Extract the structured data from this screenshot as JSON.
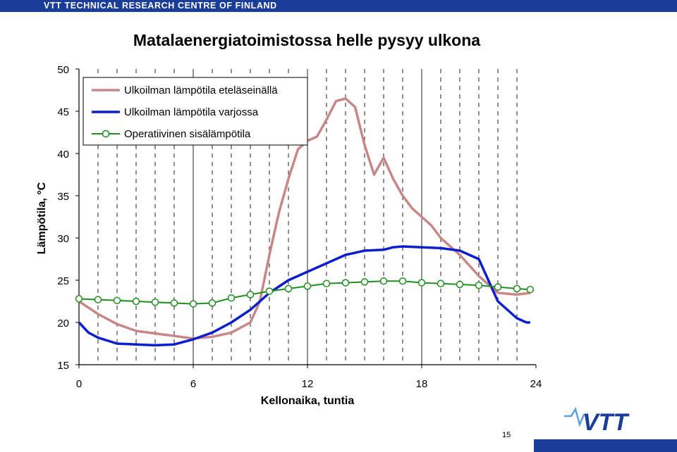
{
  "header": {
    "banner": "VTT TECHNICAL RESEARCH CENTRE OF FINLAND"
  },
  "footer": {
    "page_number": "15",
    "logo": "VTT"
  },
  "colors": {
    "banner": "#1a3d99",
    "south_wall": "#c78787",
    "shade": "#0d1fcc",
    "operative": "#1f8f1f"
  },
  "chart_data": {
    "type": "line",
    "title": "Matalaenergiatoimistossa helle pysyy ulkona",
    "xlabel": "Kellonaika, tuntia",
    "ylabel": "Lämpötila, °C",
    "xlim": [
      0,
      24
    ],
    "ylim": [
      15,
      50
    ],
    "x_ticks": [
      "0",
      "6",
      "12",
      "18",
      "24"
    ],
    "y_ticks": [
      "15",
      "20",
      "25",
      "30",
      "35",
      "40",
      "45",
      "50"
    ],
    "grid": "vertical dashed lines every hour",
    "legend_position": "top-left",
    "series": [
      {
        "name": "Ulkoilman lämpötila eteläseinällä",
        "color": "#c78787",
        "marker": "none",
        "x": [
          0,
          1,
          2,
          3,
          4,
          5,
          6,
          7,
          8,
          9,
          9.5,
          10,
          10.5,
          11,
          11.5,
          12,
          12.5,
          13,
          13.5,
          14,
          14.5,
          15,
          15.5,
          16,
          16.5,
          17,
          17.5,
          18,
          18.5,
          19,
          20,
          21,
          22,
          23,
          23.7
        ],
        "y": [
          22.5,
          21.0,
          19.8,
          19.0,
          18.7,
          18.4,
          18.1,
          18.3,
          18.8,
          20.0,
          22.5,
          28.0,
          33.0,
          37.0,
          40.5,
          41.5,
          42.0,
          44.0,
          46.2,
          46.5,
          45.5,
          41.0,
          37.5,
          39.5,
          37.0,
          35.0,
          33.5,
          32.5,
          31.5,
          30.0,
          28.0,
          25.5,
          23.5,
          23.3,
          23.5
        ]
      },
      {
        "name": "Ulkoilman lämpötila varjossa",
        "color": "#0d1fcc",
        "marker": "none",
        "x": [
          0,
          0.5,
          1,
          2,
          3,
          4,
          5,
          6,
          7,
          8,
          9,
          10,
          11,
          12,
          13,
          14,
          15,
          16,
          16.5,
          17,
          18,
          19,
          20,
          21,
          21.5,
          22,
          22.5,
          23,
          23.5,
          23.7
        ],
        "y": [
          20.0,
          18.8,
          18.2,
          17.5,
          17.4,
          17.3,
          17.4,
          18.0,
          18.8,
          20.0,
          21.5,
          23.5,
          25.0,
          26.0,
          27.0,
          28.0,
          28.5,
          28.6,
          28.9,
          29.0,
          28.9,
          28.8,
          28.5,
          27.5,
          25.0,
          22.5,
          21.5,
          20.5,
          20.0,
          20.0
        ]
      },
      {
        "name": "Operatiivinen sisälämpötila",
        "color": "#1f8f1f",
        "marker": "circle",
        "x": [
          0,
          1,
          2,
          3,
          4,
          5,
          6,
          7,
          8,
          9,
          10,
          11,
          12,
          13,
          14,
          15,
          16,
          17,
          18,
          19,
          20,
          21,
          22,
          23,
          23.7
        ],
        "y": [
          22.8,
          22.7,
          22.6,
          22.5,
          22.4,
          22.3,
          22.2,
          22.3,
          22.9,
          23.3,
          23.7,
          24.0,
          24.3,
          24.6,
          24.7,
          24.8,
          24.9,
          24.9,
          24.7,
          24.6,
          24.5,
          24.4,
          24.2,
          24.0,
          23.9
        ]
      }
    ]
  }
}
